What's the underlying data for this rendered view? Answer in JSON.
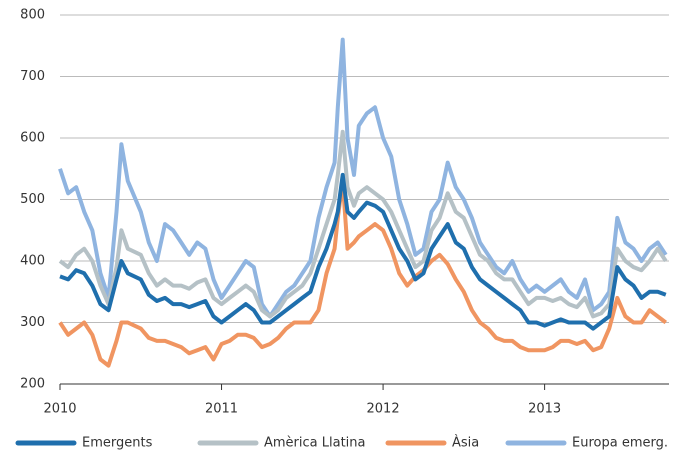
{
  "chart_data": {
    "type": "line",
    "x": [
      2010.0,
      2010.05,
      2010.1,
      2010.15,
      2010.2,
      2010.25,
      2010.3,
      2010.35,
      2010.38,
      2010.42,
      2010.5,
      2010.55,
      2010.6,
      2010.65,
      2010.7,
      2010.75,
      2010.8,
      2010.85,
      2010.9,
      2010.95,
      2011.0,
      2011.05,
      2011.1,
      2011.15,
      2011.2,
      2011.25,
      2011.3,
      2011.35,
      2011.4,
      2011.45,
      2011.5,
      2011.55,
      2011.6,
      2011.65,
      2011.7,
      2011.72,
      2011.75,
      2011.78,
      2011.82,
      2011.85,
      2011.9,
      2011.95,
      2012.0,
      2012.05,
      2012.1,
      2012.15,
      2012.2,
      2012.25,
      2012.3,
      2012.35,
      2012.4,
      2012.45,
      2012.5,
      2012.55,
      2012.6,
      2012.65,
      2012.7,
      2012.75,
      2012.8,
      2012.85,
      2012.9,
      2012.95,
      2013.0,
      2013.05,
      2013.1,
      2013.15,
      2013.2,
      2013.25,
      2013.3,
      2013.35,
      2013.4,
      2013.45,
      2013.5,
      2013.55,
      2013.6,
      2013.65,
      2013.7,
      2013.75
    ],
    "series": [
      {
        "name": "Emergents",
        "color": "#1f6fad",
        "values": [
          375,
          370,
          385,
          380,
          360,
          330,
          320,
          370,
          400,
          380,
          370,
          345,
          335,
          340,
          330,
          330,
          325,
          330,
          335,
          310,
          300,
          310,
          320,
          330,
          320,
          300,
          300,
          310,
          320,
          330,
          340,
          350,
          390,
          420,
          460,
          480,
          540,
          480,
          470,
          480,
          495,
          490,
          480,
          450,
          420,
          400,
          370,
          380,
          420,
          440,
          460,
          430,
          420,
          390,
          370,
          360,
          350,
          340,
          330,
          320,
          300,
          300,
          295,
          300,
          305,
          300,
          300,
          300,
          290,
          300,
          310,
          390,
          370,
          360,
          340,
          350,
          350,
          345
        ]
      },
      {
        "name": "Amèrica Llatina",
        "color": "#b5c1c6",
        "values": [
          400,
          390,
          410,
          420,
          400,
          360,
          330,
          390,
          450,
          420,
          410,
          380,
          360,
          370,
          360,
          360,
          355,
          365,
          370,
          340,
          330,
          340,
          350,
          360,
          350,
          320,
          310,
          320,
          340,
          350,
          360,
          380,
          420,
          460,
          500,
          540,
          610,
          520,
          490,
          510,
          520,
          510,
          500,
          480,
          450,
          420,
          390,
          400,
          450,
          470,
          510,
          480,
          470,
          440,
          410,
          400,
          380,
          370,
          370,
          350,
          330,
          340,
          340,
          335,
          340,
          330,
          325,
          340,
          310,
          315,
          330,
          420,
          400,
          390,
          385,
          400,
          420,
          400
        ]
      },
      {
        "name": "Àsia",
        "color": "#f09561",
        "values": [
          300,
          280,
          290,
          300,
          280,
          240,
          230,
          270,
          300,
          300,
          290,
          275,
          270,
          270,
          265,
          260,
          250,
          255,
          260,
          240,
          265,
          270,
          280,
          280,
          275,
          260,
          265,
          275,
          290,
          300,
          300,
          300,
          320,
          380,
          420,
          470,
          530,
          420,
          430,
          440,
          450,
          460,
          450,
          420,
          380,
          360,
          375,
          385,
          400,
          410,
          395,
          370,
          350,
          320,
          300,
          290,
          275,
          270,
          270,
          260,
          255,
          255,
          255,
          260,
          270,
          270,
          265,
          270,
          255,
          260,
          290,
          340,
          310,
          300,
          300,
          320,
          310,
          300
        ]
      },
      {
        "name": "Europa emerg.",
        "color": "#8fb4e0",
        "values": [
          550,
          510,
          520,
          480,
          450,
          380,
          340,
          480,
          590,
          530,
          480,
          430,
          400,
          460,
          450,
          430,
          410,
          430,
          420,
          370,
          340,
          360,
          380,
          400,
          390,
          330,
          310,
          330,
          350,
          360,
          380,
          400,
          470,
          520,
          560,
          650,
          760,
          600,
          540,
          620,
          640,
          650,
          600,
          570,
          500,
          460,
          410,
          420,
          480,
          500,
          560,
          520,
          500,
          470,
          430,
          410,
          390,
          380,
          400,
          370,
          350,
          360,
          350,
          360,
          370,
          350,
          340,
          370,
          320,
          330,
          350,
          470,
          430,
          420,
          400,
          420,
          430,
          410
        ]
      }
    ],
    "xlim": [
      2010,
      2013.77
    ],
    "xticks": [
      2010,
      2011,
      2012,
      2013
    ],
    "ylim": [
      200,
      800
    ],
    "yticks": [
      200,
      300,
      400,
      500,
      600,
      700,
      800
    ],
    "grid": true,
    "legend": "bottom"
  }
}
